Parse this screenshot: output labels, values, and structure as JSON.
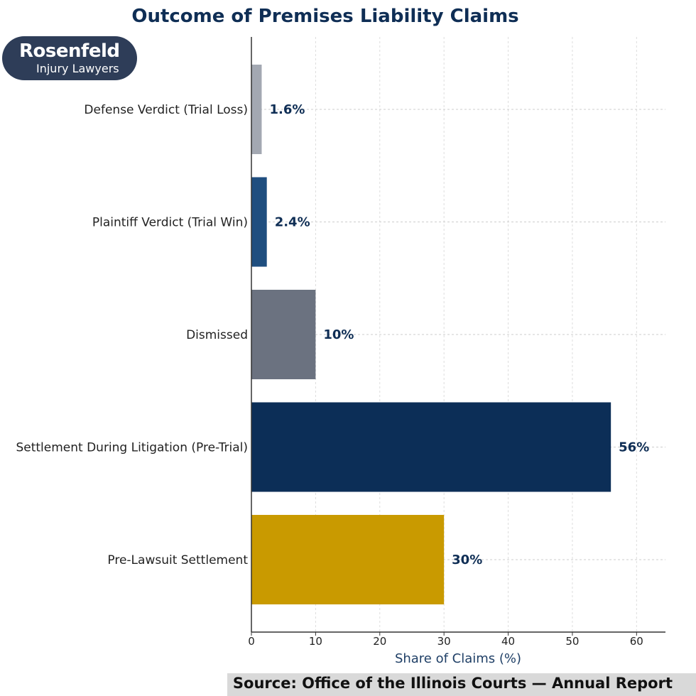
{
  "brand": {
    "name": "Rosenfeld",
    "tagline": "Injury Lawyers"
  },
  "source": "Source: Office of the Illinois Courts — Annual Report",
  "chart_data": {
    "type": "bar",
    "orientation": "horizontal",
    "title": "Outcome of Premises Liability Claims",
    "xlabel": "Share of Claims (%)",
    "ylabel": "",
    "categories": [
      "Defense Verdict (Trial Loss)",
      "Plaintiff Verdict (Trial Win)",
      "Dismissed",
      "Settlement During Litigation (Pre-Trial)",
      "Pre-Lawsuit Settlement"
    ],
    "values": [
      1.6,
      2.4,
      10,
      56,
      30
    ],
    "value_labels": [
      "1.6%",
      "2.4%",
      "10%",
      "56%",
      "30%"
    ],
    "colors": [
      "#a3a8b2",
      "#1f4e7f",
      "#6b7280",
      "#0c2e57",
      "#c99a00"
    ],
    "xlim": [
      0,
      64.5
    ],
    "xticks": [
      0,
      10,
      20,
      30,
      40,
      50,
      60
    ],
    "grid": true
  }
}
